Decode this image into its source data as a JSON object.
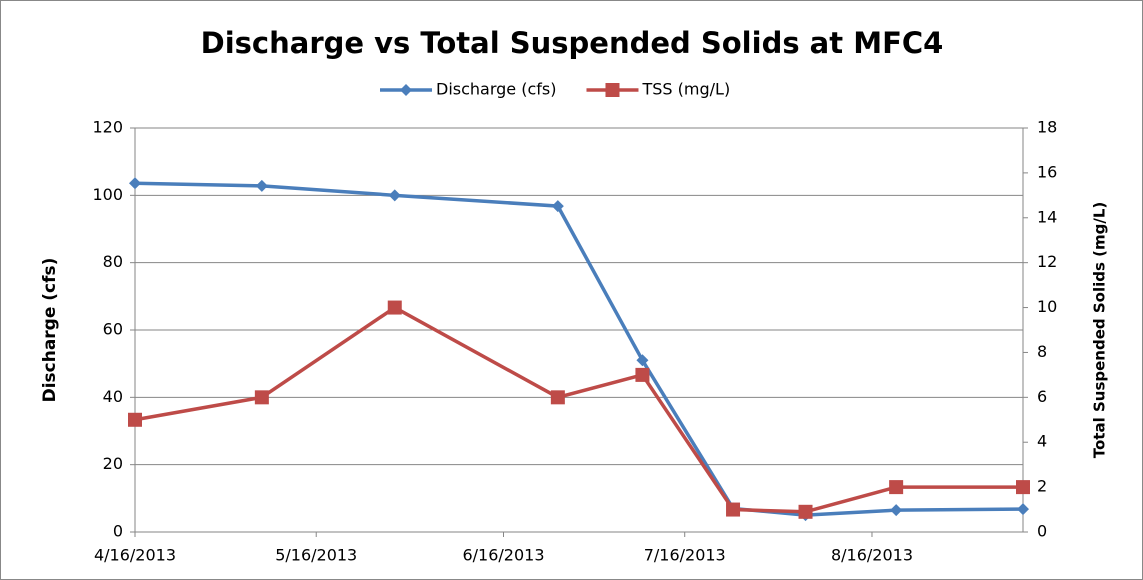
{
  "chart_data": {
    "type": "line",
    "title": "Discharge vs Total Suspended Solids at MFC4",
    "y_label": "Discharge (cfs)",
    "y2_label": "Total Suspended Solids (mg/L)",
    "x": [
      "4/16/2013",
      "5/7/2013",
      "5/29/2013",
      "6/25/2013",
      "7/9/2013",
      "7/24/2013",
      "8/5/2013",
      "8/20/2013",
      "9/10/2013"
    ],
    "series": [
      {
        "name": "Discharge (cfs)",
        "color": "#4a7ebb",
        "marker": "diamond",
        "values": [
          103.6,
          102.8,
          100,
          96.8,
          51,
          7,
          5,
          6.5,
          6.8
        ]
      },
      {
        "name": "TSS (mg/L)",
        "color": "#be4b48",
        "marker": "square",
        "axis": "y2",
        "values": [
          5,
          6,
          10,
          6,
          7,
          1,
          0.9,
          2,
          2
        ]
      }
    ],
    "xlim": [
      "4/16/2013",
      "9/10/2013"
    ],
    "xticks": [
      "4/16/2013",
      "5/16/2013",
      "6/16/2013",
      "7/16/2013",
      "8/16/2013"
    ],
    "ylim": [
      0,
      120
    ],
    "yticks": [
      0,
      20,
      40,
      60,
      80,
      100,
      120
    ],
    "y2lim": [
      0,
      18
    ],
    "y2ticks": [
      0,
      2,
      4,
      6,
      8,
      10,
      12,
      14,
      16,
      18
    ],
    "grid": true,
    "legend": "top"
  }
}
